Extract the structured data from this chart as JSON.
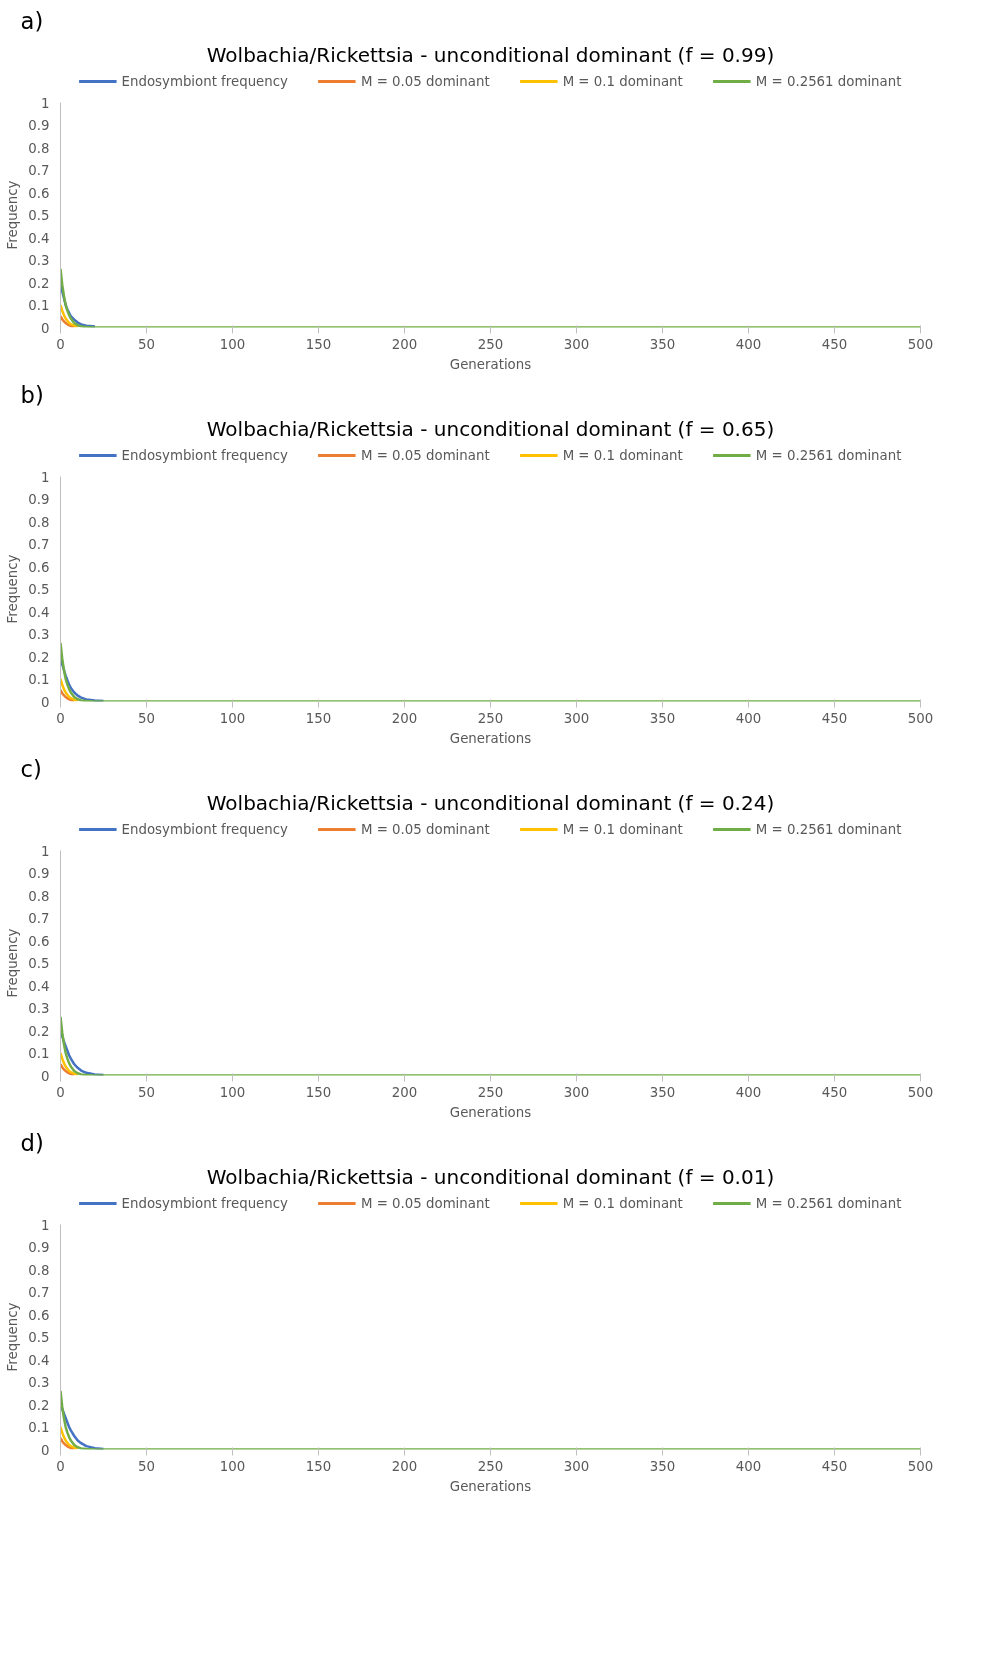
{
  "chart_data": [
    {
      "type": "line",
      "title": "Wolbachia/Rickettsia - unconditional dominant (f = 0.99)",
      "annotations": [
        "a)"
      ],
      "xlabel": "Generations",
      "ylabel": "Frequency",
      "legend": "top",
      "grid": false,
      "xlim": [
        0,
        500
      ],
      "ylim": [
        0,
        1
      ],
      "xticks": [
        0,
        50,
        100,
        150,
        200,
        250,
        300,
        350,
        400,
        450,
        500
      ],
      "yticks": [
        0,
        0.1,
        0.2,
        0.3,
        0.4,
        0.5,
        0.6,
        0.7,
        0.8,
        0.9,
        1
      ],
      "series": [
        {
          "name": "Endosymbiont frequency",
          "color": "#4472c4",
          "x": [
            0,
            1,
            2,
            3,
            4,
            5,
            6,
            8,
            10,
            12,
            15,
            20
          ],
          "values": [
            0.2,
            0.16,
            0.13,
            0.1,
            0.08,
            0.065,
            0.05,
            0.035,
            0.022,
            0.014,
            0.008,
            0.004
          ]
        },
        {
          "name": "M = 0.05 dominant",
          "color": "#ed7d31",
          "x": [
            0,
            1,
            2,
            3,
            4,
            5,
            6,
            8
          ],
          "values": [
            0.05,
            0.037,
            0.027,
            0.02,
            0.014,
            0.01,
            0.007,
            0.004
          ]
        },
        {
          "name": "M = 0.1 dominant",
          "color": "#ffc000",
          "x": [
            0,
            1,
            2,
            3,
            4,
            5,
            6,
            8,
            10
          ],
          "values": [
            0.1,
            0.075,
            0.055,
            0.04,
            0.03,
            0.02,
            0.015,
            0.008,
            0.004
          ]
        },
        {
          "name": "M = 0.2561 dominant",
          "color": "#70ad47",
          "x": [
            0,
            1,
            2,
            3,
            4,
            5,
            6,
            8,
            10,
            12,
            15,
            20,
            500
          ],
          "values": [
            0.26,
            0.19,
            0.14,
            0.1,
            0.075,
            0.055,
            0.04,
            0.02,
            0.01,
            0.005,
            0.002,
            0,
            0
          ]
        }
      ]
    },
    {
      "type": "line",
      "title": "Wolbachia/Rickettsia - unconditional dominant (f = 0.65)",
      "annotations": [
        "b)"
      ],
      "xlabel": "Generations",
      "ylabel": "Frequency",
      "legend": "top",
      "grid": false,
      "xlim": [
        0,
        500
      ],
      "ylim": [
        0,
        1
      ],
      "xticks": [
        0,
        50,
        100,
        150,
        200,
        250,
        300,
        350,
        400,
        450,
        500
      ],
      "yticks": [
        0,
        0.1,
        0.2,
        0.3,
        0.4,
        0.5,
        0.6,
        0.7,
        0.8,
        0.9,
        1
      ],
      "series": [
        {
          "name": "Endosymbiont frequency",
          "color": "#4472c4",
          "x": [
            0,
            1,
            2,
            3,
            4,
            5,
            6,
            8,
            10,
            12,
            15,
            20,
            25
          ],
          "values": [
            0.2,
            0.165,
            0.14,
            0.115,
            0.095,
            0.075,
            0.06,
            0.04,
            0.026,
            0.017,
            0.009,
            0.004,
            0.002
          ]
        },
        {
          "name": "M = 0.05 dominant",
          "color": "#ed7d31",
          "x": [
            0,
            1,
            2,
            3,
            4,
            5,
            6,
            8
          ],
          "values": [
            0.05,
            0.037,
            0.027,
            0.02,
            0.014,
            0.01,
            0.007,
            0.004
          ]
        },
        {
          "name": "M = 0.1 dominant",
          "color": "#ffc000",
          "x": [
            0,
            1,
            2,
            3,
            4,
            5,
            6,
            8,
            10
          ],
          "values": [
            0.1,
            0.075,
            0.055,
            0.04,
            0.03,
            0.02,
            0.015,
            0.008,
            0.004
          ]
        },
        {
          "name": "M = 0.2561 dominant",
          "color": "#70ad47",
          "x": [
            0,
            1,
            2,
            3,
            4,
            5,
            6,
            8,
            10,
            12,
            15,
            20,
            500
          ],
          "values": [
            0.26,
            0.19,
            0.14,
            0.1,
            0.075,
            0.055,
            0.04,
            0.02,
            0.01,
            0.005,
            0.002,
            0,
            0
          ]
        }
      ]
    },
    {
      "type": "line",
      "title": "Wolbachia/Rickettsia - unconditional dominant (f = 0.24)",
      "annotations": [
        "c)"
      ],
      "xlabel": "Generations",
      "ylabel": "Frequency",
      "legend": "top",
      "grid": false,
      "xlim": [
        0,
        500
      ],
      "ylim": [
        0,
        1
      ],
      "xticks": [
        0,
        50,
        100,
        150,
        200,
        250,
        300,
        350,
        400,
        450,
        500
      ],
      "yticks": [
        0,
        0.1,
        0.2,
        0.3,
        0.4,
        0.5,
        0.6,
        0.7,
        0.8,
        0.9,
        1
      ],
      "series": [
        {
          "name": "Endosymbiont frequency",
          "color": "#4472c4",
          "x": [
            0,
            1,
            2,
            3,
            4,
            5,
            6,
            8,
            10,
            12,
            15,
            20,
            25
          ],
          "values": [
            0.2,
            0.175,
            0.15,
            0.13,
            0.11,
            0.09,
            0.075,
            0.05,
            0.034,
            0.022,
            0.012,
            0.005,
            0.002
          ]
        },
        {
          "name": "M = 0.05 dominant",
          "color": "#ed7d31",
          "x": [
            0,
            1,
            2,
            3,
            4,
            5,
            6,
            8
          ],
          "values": [
            0.05,
            0.037,
            0.027,
            0.02,
            0.014,
            0.01,
            0.007,
            0.004
          ]
        },
        {
          "name": "M = 0.1 dominant",
          "color": "#ffc000",
          "x": [
            0,
            1,
            2,
            3,
            4,
            5,
            6,
            8,
            10
          ],
          "values": [
            0.1,
            0.075,
            0.055,
            0.04,
            0.03,
            0.02,
            0.015,
            0.008,
            0.004
          ]
        },
        {
          "name": "M = 0.2561 dominant",
          "color": "#70ad47",
          "x": [
            0,
            1,
            2,
            3,
            4,
            5,
            6,
            8,
            10,
            12,
            15,
            20,
            500
          ],
          "values": [
            0.26,
            0.19,
            0.14,
            0.1,
            0.075,
            0.055,
            0.04,
            0.02,
            0.01,
            0.005,
            0.002,
            0,
            0
          ]
        }
      ]
    },
    {
      "type": "line",
      "title": "Wolbachia/Rickettsia - unconditional dominant (f = 0.01)",
      "annotations": [
        "d)"
      ],
      "xlabel": "Generations",
      "ylabel": "Frequency",
      "legend": "top",
      "grid": false,
      "xlim": [
        0,
        500
      ],
      "ylim": [
        0,
        1
      ],
      "xticks": [
        0,
        50,
        100,
        150,
        200,
        250,
        300,
        350,
        400,
        450,
        500
      ],
      "yticks": [
        0,
        0.1,
        0.2,
        0.3,
        0.4,
        0.5,
        0.6,
        0.7,
        0.8,
        0.9,
        1
      ],
      "series": [
        {
          "name": "Endosymbiont frequency",
          "color": "#4472c4",
          "x": [
            0,
            1,
            2,
            3,
            4,
            5,
            6,
            8,
            10,
            12,
            15,
            20,
            25
          ],
          "values": [
            0.2,
            0.18,
            0.16,
            0.14,
            0.12,
            0.1,
            0.085,
            0.06,
            0.04,
            0.028,
            0.015,
            0.006,
            0.002
          ]
        },
        {
          "name": "M = 0.05 dominant",
          "color": "#ed7d31",
          "x": [
            0,
            1,
            2,
            3,
            4,
            5,
            6,
            8
          ],
          "values": [
            0.05,
            0.037,
            0.027,
            0.02,
            0.014,
            0.01,
            0.007,
            0.004
          ]
        },
        {
          "name": "M = 0.1 dominant",
          "color": "#ffc000",
          "x": [
            0,
            1,
            2,
            3,
            4,
            5,
            6,
            8,
            10
          ],
          "values": [
            0.1,
            0.075,
            0.055,
            0.04,
            0.03,
            0.02,
            0.015,
            0.008,
            0.004
          ]
        },
        {
          "name": "M = 0.2561 dominant",
          "color": "#70ad47",
          "x": [
            0,
            1,
            2,
            3,
            4,
            5,
            6,
            8,
            10,
            12,
            15,
            20,
            500
          ],
          "values": [
            0.26,
            0.19,
            0.14,
            0.1,
            0.075,
            0.055,
            0.04,
            0.02,
            0.01,
            0.005,
            0.002,
            0,
            0
          ]
        }
      ]
    }
  ]
}
